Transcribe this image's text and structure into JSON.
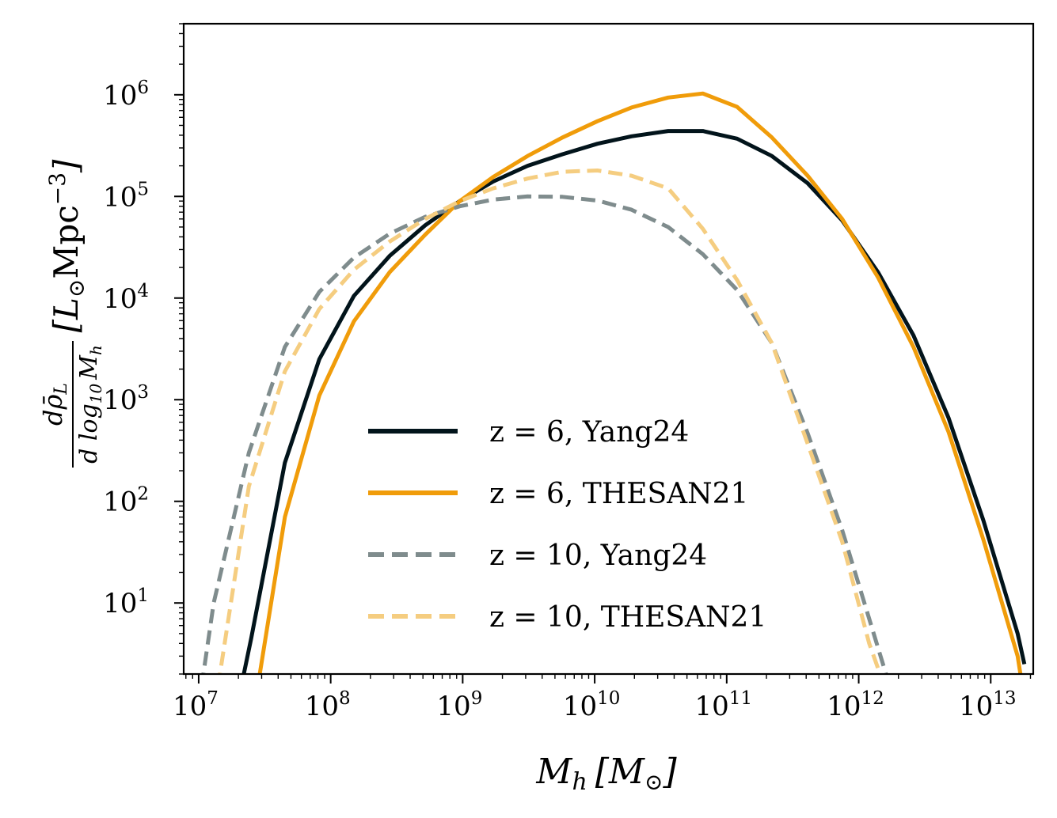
{
  "chart_data": {
    "type": "line",
    "xscale": "log",
    "yscale": "log",
    "xlim": [
      7700000.0,
      21000000000000.0
    ],
    "ylim": [
      2,
      5000000.0
    ],
    "xticks": [
      {
        "base": "10",
        "exp": "7"
      },
      {
        "base": "10",
        "exp": "8"
      },
      {
        "base": "10",
        "exp": "9"
      },
      {
        "base": "10",
        "exp": "10"
      },
      {
        "base": "10",
        "exp": "11"
      },
      {
        "base": "10",
        "exp": "12"
      },
      {
        "base": "10",
        "exp": "13"
      }
    ],
    "yticks": [
      {
        "base": "10",
        "exp": "1"
      },
      {
        "base": "10",
        "exp": "2"
      },
      {
        "base": "10",
        "exp": "3"
      },
      {
        "base": "10",
        "exp": "4"
      },
      {
        "base": "10",
        "exp": "5"
      },
      {
        "base": "10",
        "exp": "6"
      }
    ],
    "xlabel": {
      "main": "M",
      "sub": "h",
      "unit": "[M",
      "unit_sub": "⊙",
      "unit_end": "]"
    },
    "ylabel": {
      "numerator": "dρ̄",
      "numerator_sub": "L",
      "denominator": "d log",
      "denominator_sub": "10",
      "denominator_var": "M",
      "denominator_var_sub": "h",
      "unit": "[L",
      "unit_sub": "⊙",
      "unit_mid": "Mpc",
      "unit_sup": "−3",
      "unit_end": "]"
    },
    "legend_position": "lower-center",
    "grid": false,
    "series": [
      {
        "name": "z = 6, Yang24",
        "color": "#02141b",
        "dashed": false,
        "x": [
          21000000.0,
          25000000.0,
          45000000.0,
          82000000.0,
          150000000.0,
          280000000.0,
          520000000.0,
          950000000.0,
          1700000000.0,
          3100000000.0,
          5700000000.0,
          10500000000.0,
          19000000000.0,
          36000000000.0,
          66000000000.0,
          120000000000.0,
          220000000000.0,
          410000000000.0,
          750000000000.0,
          1400000000000.0,
          2600000000000.0,
          4800000000000.0,
          8800000000000.0,
          16000000000000.0,
          18000000000000.0
        ],
        "y": [
          1.5,
          4.5,
          240,
          2500,
          10500,
          26000,
          52000,
          90000,
          140000,
          200000,
          260000,
          330000,
          390000,
          440000,
          440000,
          370000,
          250000,
          135000,
          58000,
          18000,
          4300,
          660,
          65,
          5,
          2.5
        ]
      },
      {
        "name": "z = 6, THESAN21",
        "color": "#f09c0a",
        "dashed": false,
        "x": [
          28000000.0,
          45000000.0,
          82000000.0,
          150000000.0,
          280000000.0,
          520000000.0,
          950000000.0,
          1700000000.0,
          3100000000.0,
          5700000000.0,
          10500000000.0,
          19000000000.0,
          36000000000.0,
          66000000000.0,
          120000000000.0,
          220000000000.0,
          410000000000.0,
          750000000000.0,
          1400000000000.0,
          2600000000000.0,
          4800000000000.0,
          8800000000000.0,
          16000000000000.0,
          17000000000000.0
        ],
        "y": [
          1.5,
          70,
          1100,
          5900,
          18000,
          42000,
          90000,
          155000,
          250000,
          380000,
          550000,
          750000,
          940000,
          1030000,
          760000,
          380000,
          160000,
          60000,
          16000,
          3300,
          480,
          42,
          3,
          1.8
        ]
      },
      {
        "name": "z = 10, Yang24",
        "color": "#7f8c8d",
        "dashed": true,
        "x": [
          10500000.0,
          13000000.0,
          24000000.0,
          45000000.0,
          82000000.0,
          150000000.0,
          280000000.0,
          520000000.0,
          950000000.0,
          1700000000.0,
          3100000000.0,
          5700000000.0,
          10500000000.0,
          19000000000.0,
          36000000000.0,
          66000000000.0,
          120000000000.0,
          220000000000.0,
          410000000000.0,
          750000000000.0,
          1200000000000.0,
          1650000000000.0
        ],
        "y": [
          1.5,
          10,
          300,
          3300,
          11500,
          25000,
          43000,
          63000,
          80000,
          93000,
          100000,
          99000,
          91000,
          74000,
          50000,
          27000,
          12000,
          3600,
          470,
          52,
          7,
          1.8
        ]
      },
      {
        "name": "z = 10, THESAN21",
        "color": "#f5cd80",
        "dashed": true,
        "x": [
          14000000.0,
          24000000.0,
          45000000.0,
          82000000.0,
          150000000.0,
          280000000.0,
          520000000.0,
          950000000.0,
          1700000000.0,
          3100000000.0,
          5700000000.0,
          10500000000.0,
          19000000000.0,
          36000000000.0,
          66000000000.0,
          120000000000.0,
          220000000000.0,
          410000000000.0,
          750000000000.0,
          1200000000000.0,
          1450000000000.0
        ],
        "y": [
          1.5,
          140,
          1900,
          7800,
          19000,
          36000,
          60000,
          90000,
          120000,
          150000,
          175000,
          180000,
          160000,
          120000,
          48000,
          15000,
          3600,
          370,
          40,
          4,
          2
        ]
      }
    ]
  }
}
